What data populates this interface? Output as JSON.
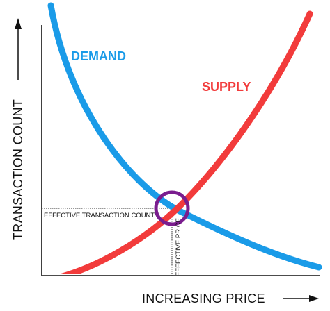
{
  "diagram": {
    "demand_label": "DEMAND",
    "supply_label": "SUPPLY",
    "x_axis_label": "INCREASING PRICE",
    "y_axis_label": "TRANSACTION COUNT",
    "effective_transaction_count_label": "EFFECTIVE TRANSACTION COUNT",
    "effective_price_label": "EFFECTIVE PRICE"
  },
  "colors": {
    "demand": "#1a9be8",
    "supply": "#f23b3b",
    "equilibrium_circle": "#7a1d8e",
    "axis": "#111111"
  }
}
